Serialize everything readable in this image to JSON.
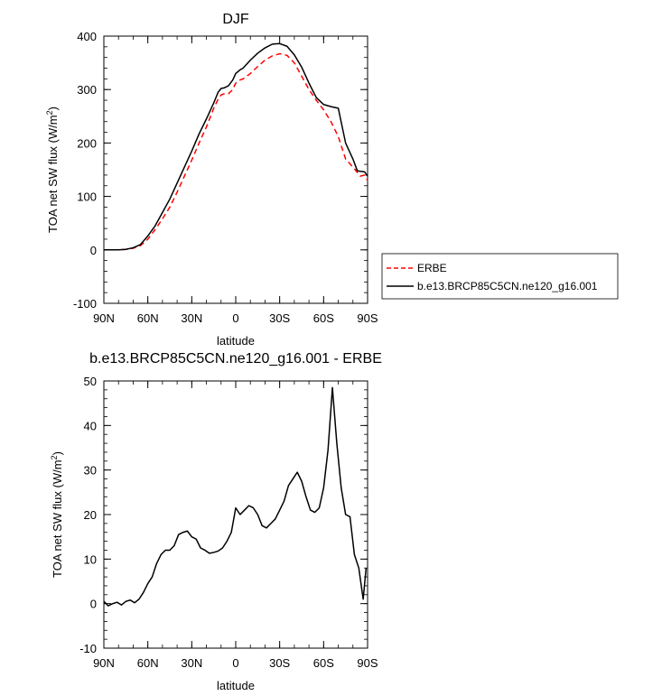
{
  "chart_data": [
    {
      "type": "line",
      "title": "DJF",
      "xlabel": "latitude",
      "ylabel": "TOA net SW flux (W/m",
      "ylabel_sup": "2",
      "ylabel_close": ")",
      "xlim": [
        -90,
        90
      ],
      "ylim": [
        -100,
        400
      ],
      "yticks": [
        -100,
        0,
        100,
        200,
        300,
        400
      ],
      "xticks": [
        -90,
        -60,
        -30,
        0,
        30,
        60,
        90
      ],
      "xticklabels": [
        "90N",
        "60N",
        "30N",
        "0",
        "30S",
        "60S",
        "90S"
      ],
      "legend_position": "right",
      "series": [
        {
          "name": "ERBE",
          "color": "#ff0000",
          "style": "dashed",
          "x": [
            -90,
            -85,
            -80,
            -75,
            -70,
            -65,
            -60,
            -55,
            -50,
            -45,
            -40,
            -35,
            -30,
            -25,
            -20,
            -15,
            -12,
            -10,
            -8,
            -5,
            -2,
            0,
            3,
            5,
            10,
            15,
            20,
            25,
            30,
            35,
            40,
            45,
            50,
            55,
            60,
            65,
            70,
            75,
            80,
            83,
            85,
            88,
            90
          ],
          "y": [
            0,
            0,
            0,
            1,
            3,
            8,
            20,
            38,
            58,
            80,
            108,
            138,
            168,
            200,
            230,
            265,
            282,
            290,
            292,
            292,
            300,
            312,
            318,
            320,
            330,
            343,
            355,
            363,
            367,
            364,
            350,
            325,
            300,
            280,
            262,
            240,
            212,
            170,
            155,
            145,
            138,
            140,
            130
          ]
        },
        {
          "name": "b.e13.BRCP85C5CN.ne120_g16.001",
          "color": "#000000",
          "style": "solid",
          "x": [
            -90,
            -85,
            -80,
            -75,
            -70,
            -65,
            -60,
            -55,
            -50,
            -45,
            -40,
            -35,
            -30,
            -25,
            -20,
            -15,
            -12,
            -10,
            -8,
            -5,
            -2,
            0,
            3,
            5,
            10,
            15,
            20,
            25,
            30,
            35,
            40,
            45,
            50,
            55,
            60,
            65,
            70,
            75,
            80,
            83,
            85,
            88,
            90
          ],
          "y": [
            0,
            0,
            0,
            1,
            4,
            10,
            26,
            45,
            70,
            95,
            125,
            155,
            185,
            217,
            245,
            275,
            295,
            302,
            303,
            307,
            318,
            330,
            337,
            340,
            355,
            368,
            378,
            385,
            386,
            381,
            365,
            342,
            312,
            285,
            272,
            268,
            265,
            200,
            170,
            148,
            147,
            146,
            138
          ]
        }
      ]
    },
    {
      "type": "line",
      "title": "b.e13.BRCP85C5CN.ne120_g16.001 - ERBE",
      "xlabel": "latitude",
      "ylabel": "TOA net SW flux (W/m",
      "ylabel_sup": "2",
      "ylabel_close": ")",
      "xlim": [
        -90,
        90
      ],
      "ylim": [
        -10,
        50
      ],
      "yticks": [
        -10,
        0,
        10,
        20,
        30,
        40,
        50
      ],
      "xticks": [
        -90,
        -60,
        -30,
        0,
        30,
        60,
        90
      ],
      "xticklabels": [
        "90N",
        "60N",
        "30N",
        "0",
        "30S",
        "60S",
        "90S"
      ],
      "series": [
        {
          "color": "#000000",
          "style": "solid",
          "x": [
            -90,
            -87,
            -84,
            -81,
            -78,
            -75,
            -72,
            -69,
            -66,
            -63,
            -60,
            -57,
            -54,
            -51,
            -48,
            -45,
            -42,
            -39,
            -36,
            -33,
            -30,
            -27,
            -24,
            -21,
            -18,
            -15,
            -12,
            -9,
            -6,
            -3,
            0,
            3,
            6,
            9,
            12,
            15,
            18,
            21,
            24,
            27,
            30,
            33,
            36,
            39,
            42,
            45,
            48,
            51,
            54,
            57,
            60,
            63,
            66,
            69,
            72,
            75,
            78,
            81,
            84,
            87,
            89
          ],
          "y": [
            0.5,
            -0.5,
            0,
            0.3,
            -0.3,
            0.5,
            0.8,
            0.2,
            1,
            2.5,
            4.5,
            6,
            9,
            11,
            12,
            12,
            13,
            15.5,
            16,
            16.3,
            15,
            14.5,
            12.5,
            12,
            11.3,
            11.5,
            11.8,
            12.5,
            14,
            16,
            21.5,
            20,
            21,
            22,
            21.5,
            20,
            17.5,
            17,
            18,
            19,
            21,
            23,
            26.5,
            28,
            29.5,
            27.5,
            24,
            21,
            20.5,
            21.5,
            26,
            34.5,
            48.5,
            36,
            26,
            20,
            19.5,
            11,
            8,
            1,
            8
          ]
        }
      ]
    }
  ],
  "legend": {
    "entries": [
      {
        "label": "ERBE",
        "color": "#ff0000",
        "style": "dashed"
      },
      {
        "label": "b.e13.BRCP85C5CN.ne120_g16.001",
        "color": "#000000",
        "style": "solid"
      }
    ]
  }
}
